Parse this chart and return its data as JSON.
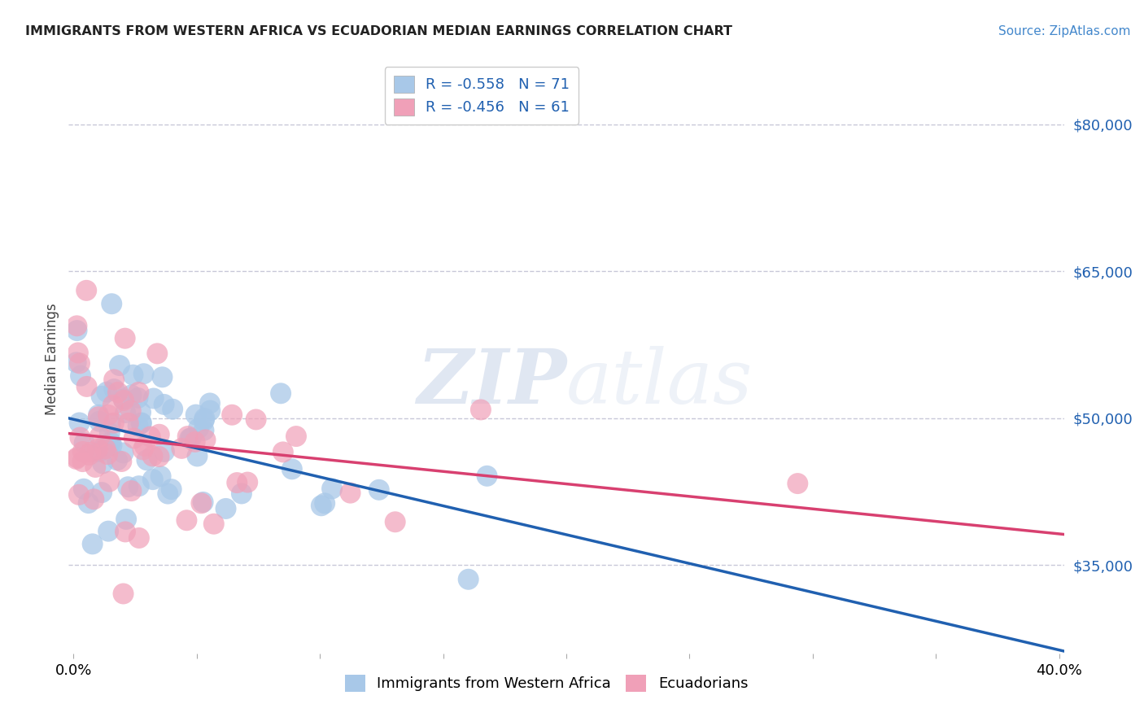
{
  "title": "IMMIGRANTS FROM WESTERN AFRICA VS ECUADORIAN MEDIAN EARNINGS CORRELATION CHART",
  "source": "Source: ZipAtlas.com",
  "ylabel": "Median Earnings",
  "xlim": [
    -0.002,
    0.402
  ],
  "ylim": [
    26000,
    86000
  ],
  "yticks": [
    35000,
    50000,
    65000,
    80000
  ],
  "ytick_labels": [
    "$35,000",
    "$50,000",
    "$65,000",
    "$80,000"
  ],
  "xtick_positions": [
    0.0,
    0.05,
    0.1,
    0.15,
    0.2,
    0.25,
    0.3,
    0.35,
    0.4
  ],
  "xtick_labels": [
    "0.0%",
    "",
    "",
    "",
    "",
    "",
    "",
    "",
    "40.0%"
  ],
  "blue_R": -0.558,
  "blue_N": 71,
  "pink_R": -0.456,
  "pink_N": 61,
  "blue_color": "#a8c8e8",
  "pink_color": "#f0a0b8",
  "blue_line_color": "#2060b0",
  "pink_line_color": "#d84070",
  "watermark_zip": "ZIP",
  "watermark_atlas": "atlas",
  "background_color": "#ffffff",
  "grid_color": "#c8c8d8",
  "legend_blue_label": "R = -0.558   N = 71",
  "legend_pink_label": "R = -0.456   N = 61",
  "legend_text_color": "#2060b0",
  "title_color": "#222222",
  "source_color": "#4488cc",
  "ylabel_color": "#444444",
  "blue_intercept": 49000,
  "blue_slope": -55000,
  "pink_intercept": 48000,
  "pink_slope": -35000
}
